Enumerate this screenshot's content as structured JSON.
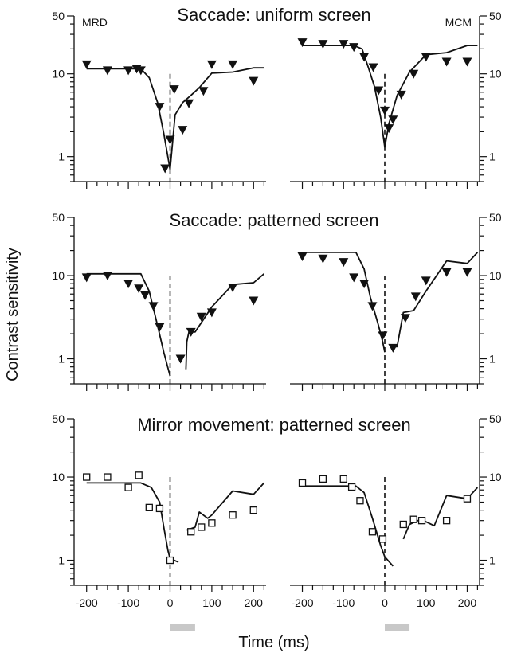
{
  "colors": {
    "ink": "#111111",
    "timing_bar": "#c8c8c8",
    "background": "#ffffff"
  },
  "x_axis_title": "Time (ms)",
  "y_axis_title": "Contrast sensitivity",
  "subjects": [
    "MRD",
    "MCM"
  ],
  "chart_data": [
    {
      "type": "line",
      "title": "Saccade: uniform screen",
      "subject": "MRD",
      "ylabel": "Contrast sensitivity",
      "xlabel": "",
      "ylim": [
        0.5,
        50
      ],
      "yscale": "log",
      "yticks": [
        1,
        10,
        50
      ],
      "ytick_labels": [
        "1",
        "10",
        "50"
      ],
      "xlim": [
        -230,
        230
      ],
      "xtick_major": [
        -200,
        -100,
        0,
        100,
        200
      ],
      "xtick_labels": [],
      "grid": false,
      "marker": "filled-triangle-down",
      "points": {
        "x": [
          -200,
          -150,
          -100,
          -80,
          -70,
          -25,
          -12,
          0,
          10,
          30,
          45,
          80,
          100,
          150,
          200
        ],
        "y": [
          13,
          11,
          11,
          11.5,
          11,
          4,
          0.72,
          1.6,
          6.5,
          2.1,
          4.4,
          6.2,
          13,
          13,
          8.2
        ]
      },
      "line": {
        "x": [
          -200,
          -100,
          -70,
          -50,
          -30,
          -15,
          0,
          12,
          30,
          50,
          70,
          100,
          150,
          200,
          225
        ],
        "y": [
          11.5,
          11.5,
          11.5,
          9,
          4.5,
          1.9,
          0.7,
          3.2,
          4.5,
          5.5,
          6.8,
          10.2,
          10.5,
          11.8,
          11.8
        ]
      }
    },
    {
      "type": "line",
      "title": "",
      "subject": "MCM",
      "ylabel": "",
      "xlabel": "",
      "ylim": [
        0.5,
        50
      ],
      "yscale": "log",
      "yticks": [
        1,
        10,
        50
      ],
      "ytick_labels": [
        "1",
        "10",
        "50"
      ],
      "xlim": [
        -230,
        230
      ],
      "xtick_major": [
        -200,
        -100,
        0,
        100,
        200
      ],
      "xtick_labels": [],
      "grid": false,
      "marker": "filled-triangle-down",
      "points": {
        "x": [
          -200,
          -150,
          -100,
          -75,
          -50,
          -28,
          -15,
          0,
          10,
          20,
          40,
          70,
          100,
          150,
          200
        ],
        "y": [
          24,
          23,
          23,
          21,
          16,
          12,
          6.3,
          3.6,
          2.2,
          2.8,
          5.6,
          10,
          16,
          14,
          14
        ]
      },
      "line": {
        "x": [
          -200,
          -100,
          -75,
          -55,
          -40,
          -25,
          -10,
          0,
          10,
          30,
          60,
          100,
          150,
          200,
          225
        ],
        "y": [
          22,
          22,
          22,
          20,
          12,
          7,
          3,
          1.3,
          2.5,
          5.5,
          10.5,
          17,
          18,
          22,
          22
        ]
      }
    },
    {
      "type": "line",
      "title": "Saccade: patterned screen",
      "subject": "",
      "ylabel": "Contrast sensitivity",
      "xlabel": "",
      "ylim": [
        0.5,
        50
      ],
      "yscale": "log",
      "yticks": [
        1,
        10,
        50
      ],
      "ytick_labels": [
        "1",
        "10",
        "50"
      ],
      "xlim": [
        -230,
        230
      ],
      "xtick_major": [
        -200,
        -100,
        0,
        100,
        200
      ],
      "xtick_labels": [],
      "grid": false,
      "marker": "filled-triangle-down",
      "points": {
        "x": [
          -200,
          -150,
          -100,
          -75,
          -60,
          -40,
          -25,
          25,
          50,
          75,
          100,
          150,
          200
        ],
        "y": [
          9.5,
          10,
          8,
          7,
          5.8,
          4.3,
          2.4,
          1,
          2.1,
          3.2,
          3.6,
          7.2,
          5
        ]
      },
      "line_segments": [
        {
          "x": [
            -200,
            -70,
            -50,
            -30,
            -15,
            0
          ],
          "y": [
            10.5,
            10.5,
            6.5,
            2.5,
            1.2,
            0.62
          ]
        },
        {
          "x": [
            38,
            40,
            45,
            60,
            100,
            150,
            200,
            225
          ],
          "y": [
            0.75,
            1.6,
            2.1,
            2.1,
            4.2,
            7.8,
            8.2,
            10.5
          ]
        }
      ]
    },
    {
      "type": "line",
      "title": "",
      "subject": "",
      "ylabel": "",
      "xlabel": "",
      "ylim": [
        0.5,
        50
      ],
      "yscale": "log",
      "yticks": [
        1,
        10,
        50
      ],
      "ytick_labels": [
        "1",
        "10",
        "50"
      ],
      "xlim": [
        -230,
        230
      ],
      "xtick_major": [
        -200,
        -100,
        0,
        100,
        200
      ],
      "xtick_labels": [],
      "grid": false,
      "marker": "filled-triangle-down",
      "points": {
        "x": [
          -200,
          -150,
          -100,
          -75,
          -50,
          -30,
          -5,
          20,
          50,
          75,
          100,
          150,
          200
        ],
        "y": [
          17,
          16,
          14.5,
          9.5,
          8,
          4.3,
          1.9,
          1.35,
          3.1,
          5.6,
          8.7,
          11,
          11
        ]
      },
      "line_segments": [
        {
          "x": [
            -200,
            -100,
            -70,
            -50,
            -35,
            -15,
            -5,
            0
          ],
          "y": [
            19,
            19,
            19,
            12,
            5.5,
            2.5,
            1.6,
            1.2
          ]
        },
        {
          "x": [
            15,
            30,
            45,
            70,
            100,
            150,
            200,
            225
          ],
          "y": [
            1.4,
            1.4,
            3.6,
            3.8,
            6.5,
            15,
            14,
            19
          ]
        }
      ]
    },
    {
      "type": "line",
      "title": "Mirror movement: patterned screen",
      "subject": "",
      "ylabel": "Contrast sensitivity",
      "xlabel": "Time (ms)",
      "ylim": [
        0.5,
        50
      ],
      "yscale": "log",
      "yticks": [
        1,
        10,
        50
      ],
      "ytick_labels": [
        "1",
        "10",
        "50"
      ],
      "xlim": [
        -230,
        230
      ],
      "xtick_major": [
        -200,
        -100,
        0,
        100,
        200
      ],
      "xtick_labels": [
        "-200",
        "-100",
        "0",
        "100",
        "200"
      ],
      "grid": false,
      "marker": "open-square",
      "points": {
        "x": [
          -200,
          -150,
          -100,
          -75,
          -50,
          -25,
          0,
          50,
          75,
          100,
          150,
          200
        ],
        "y": [
          10,
          10,
          7.5,
          10.5,
          4.3,
          4.2,
          1,
          2.2,
          2.5,
          2.8,
          3.5,
          4
        ]
      },
      "line_segments": [
        {
          "x": [
            -200,
            -100,
            -70,
            -45,
            -25,
            -15,
            -5,
            0,
            20
          ],
          "y": [
            8.5,
            8.5,
            8.5,
            7.5,
            5,
            2.5,
            1.3,
            1.05,
            0.95
          ]
        },
        {
          "x": [
            40,
            60,
            70,
            90,
            100,
            150,
            200,
            225
          ],
          "y": [
            2.3,
            2.5,
            3.8,
            3.2,
            3.5,
            6.8,
            6.2,
            8.5
          ]
        }
      ],
      "saccade_bar_ms": [
        0,
        60
      ]
    },
    {
      "type": "line",
      "title": "",
      "subject": "",
      "ylabel": "",
      "xlabel": "Time (ms)",
      "ylim": [
        0.5,
        50
      ],
      "yscale": "log",
      "yticks": [
        1,
        10,
        50
      ],
      "ytick_labels": [
        "1",
        "10",
        "50"
      ],
      "xlim": [
        -230,
        230
      ],
      "xtick_major": [
        -200,
        -100,
        0,
        100,
        200
      ],
      "xtick_labels": [
        "-200",
        "-100",
        "0",
        "100",
        "200"
      ],
      "grid": false,
      "marker": "open-square",
      "points": {
        "x": [
          -200,
          -150,
          -100,
          -80,
          -60,
          -30,
          -5,
          45,
          70,
          90,
          150,
          200
        ],
        "y": [
          8.5,
          9.5,
          9.5,
          7.6,
          5.2,
          2.2,
          1.8,
          2.7,
          3.1,
          3,
          3,
          5.5
        ]
      },
      "line_segments": [
        {
          "x": [
            -200,
            -100,
            -70,
            -50,
            -30,
            -10,
            0,
            20
          ],
          "y": [
            7.8,
            7.8,
            7.8,
            6.5,
            3.2,
            1.5,
            1.1,
            0.85
          ]
        },
        {
          "x": [
            45,
            60,
            80,
            100,
            120,
            150,
            200,
            225
          ],
          "y": [
            1.8,
            2.7,
            3.0,
            2.9,
            2.6,
            6,
            5.5,
            7.5
          ]
        }
      ],
      "saccade_bar_ms": [
        0,
        60
      ]
    }
  ]
}
